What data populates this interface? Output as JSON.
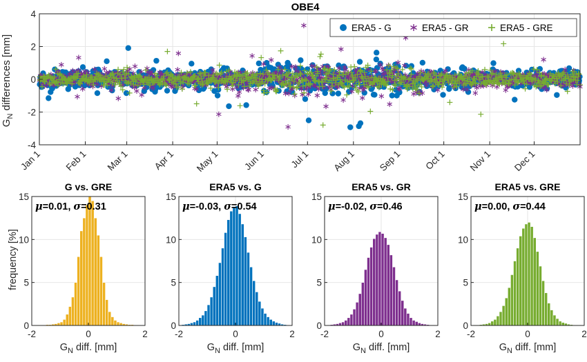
{
  "chart_data": [
    {
      "type": "scatter",
      "title": "OBE4",
      "ylabel_main": "G",
      "ylabel_sub": "N",
      "ylabel_rest": " differences [mm]",
      "ylim": [
        -4,
        4
      ],
      "yticks": [
        -4,
        -2,
        0,
        2,
        4
      ],
      "x_ticks": [
        "Jan 1",
        "Feb 1",
        "Mar 1",
        "Apr 1",
        "May 1",
        "Jun 1",
        "Jul 1",
        "Aug 1",
        "Sep 1",
        "Oct 1",
        "Nov 1",
        "Dec 1"
      ],
      "x_tick_days": [
        1,
        32,
        60,
        91,
        121,
        152,
        182,
        213,
        244,
        274,
        305,
        335
      ],
      "xlim_days": [
        1,
        366
      ],
      "grid": true,
      "legend_position": "top-right",
      "series": [
        {
          "name": "ERA5 - G",
          "marker": "filled-circle",
          "color": "#0072bd",
          "spread": 0.54
        },
        {
          "name": "ERA5 - GR",
          "marker": "asterisk",
          "color": "#7e2f8e",
          "spread": 0.46
        },
        {
          "name": "ERA5 - GRE",
          "marker": "plus",
          "color": "#77ac30",
          "spread": 0.44
        }
      ]
    },
    {
      "type": "bar",
      "title": "G vs. GRE",
      "mu": "0.01",
      "sigma": "0.31",
      "color": "#edb120",
      "xlim": [
        -2,
        2
      ],
      "xticks": [
        "-2",
        "0",
        "2"
      ],
      "ylim": [
        0,
        15
      ],
      "yticks": [
        "0",
        "5",
        "10",
        "15"
      ],
      "ylabel": "frequency [%]",
      "xlabel_main": "G",
      "xlabel_sub": "N",
      "xlabel_rest": " diff. [mm]",
      "bin_width": 0.1,
      "bin_centers": [
        -1.75,
        -1.65,
        -1.55,
        -1.45,
        -1.35,
        -1.25,
        -1.15,
        -1.05,
        -0.95,
        -0.85,
        -0.75,
        -0.65,
        -0.55,
        -0.45,
        -0.35,
        -0.25,
        -0.15,
        -0.05,
        0.05,
        0.15,
        0.25,
        0.35,
        0.45,
        0.55,
        0.65,
        0.75,
        0.85,
        0.95,
        1.05,
        1.15,
        1.25,
        1.35,
        1.45,
        1.55,
        1.65,
        1.75
      ],
      "values": [
        0.05,
        0.05,
        0.05,
        0.1,
        0.1,
        0.15,
        0.2,
        0.3,
        0.4,
        0.7,
        1.3,
        2.2,
        3.3,
        5.0,
        8.0,
        11.0,
        12.5,
        14.0,
        15.0,
        14.5,
        12.5,
        10.5,
        8.0,
        5.0,
        3.0,
        1.6,
        1.0,
        0.6,
        0.4,
        0.3,
        0.2,
        0.15,
        0.1,
        0.1,
        0.05,
        0.05
      ]
    },
    {
      "type": "bar",
      "title": "ERA5 vs. G",
      "mu": "-0.03",
      "sigma": "0.54",
      "color": "#0072bd",
      "xlim": [
        -2,
        2
      ],
      "xticks": [
        "-2",
        "0",
        "2"
      ],
      "ylim": [
        0,
        15
      ],
      "yticks": [
        "0",
        "5",
        "10",
        "15"
      ],
      "xlabel_main": "G",
      "xlabel_sub": "N",
      "xlabel_rest": " diff. [mm]",
      "bin_width": 0.1,
      "bin_centers": [
        -1.85,
        -1.75,
        -1.65,
        -1.55,
        -1.45,
        -1.35,
        -1.25,
        -1.15,
        -1.05,
        -0.95,
        -0.85,
        -0.75,
        -0.65,
        -0.55,
        -0.45,
        -0.35,
        -0.25,
        -0.15,
        -0.05,
        0.05,
        0.15,
        0.25,
        0.35,
        0.45,
        0.55,
        0.65,
        0.75,
        0.85,
        0.95,
        1.05,
        1.15,
        1.25,
        1.35,
        1.45,
        1.55,
        1.65,
        1.75,
        1.85
      ],
      "values": [
        0.1,
        0.15,
        0.2,
        0.3,
        0.4,
        0.6,
        0.9,
        1.2,
        1.7,
        2.4,
        3.3,
        4.5,
        5.8,
        7.3,
        9.0,
        10.8,
        12.3,
        13.3,
        13.7,
        13.9,
        13.0,
        11.8,
        10.3,
        8.5,
        6.8,
        5.2,
        3.9,
        2.8,
        2.0,
        1.4,
        1.0,
        0.7,
        0.5,
        0.35,
        0.25,
        0.15,
        0.1,
        0.05
      ]
    },
    {
      "type": "bar",
      "title": "ERA5 vs. GR",
      "mu": "-0.02",
      "sigma": "0.46",
      "color": "#7e2f8e",
      "xlim": [
        -2,
        2
      ],
      "xticks": [
        "-2",
        "0",
        "2"
      ],
      "ylim": [
        0,
        15
      ],
      "yticks": [
        "0",
        "5",
        "10",
        "15"
      ],
      "xlabel_main": "G",
      "xlabel_sub": "N",
      "xlabel_rest": " diff. [mm]",
      "bin_width": 0.1,
      "bin_centers": [
        -1.85,
        -1.75,
        -1.65,
        -1.55,
        -1.45,
        -1.35,
        -1.25,
        -1.15,
        -1.05,
        -0.95,
        -0.85,
        -0.75,
        -0.65,
        -0.55,
        -0.45,
        -0.35,
        -0.25,
        -0.15,
        -0.05,
        0.05,
        0.15,
        0.25,
        0.35,
        0.45,
        0.55,
        0.65,
        0.75,
        0.85,
        0.95,
        1.05,
        1.15,
        1.25,
        1.35,
        1.45,
        1.55,
        1.65,
        1.75,
        1.85
      ],
      "values": [
        0.05,
        0.1,
        0.15,
        0.2,
        0.3,
        0.4,
        0.6,
        0.9,
        1.3,
        1.9,
        2.7,
        3.7,
        5.0,
        6.5,
        7.9,
        9.1,
        10.1,
        10.6,
        10.9,
        10.7,
        10.2,
        9.4,
        8.2,
        6.8,
        5.3,
        4.0,
        2.9,
        2.0,
        1.4,
        0.9,
        0.6,
        0.45,
        0.3,
        0.2,
        0.15,
        0.1,
        0.05,
        0.05
      ]
    },
    {
      "type": "bar",
      "title": "ERA5 vs. GRE",
      "mu": "0.00",
      "sigma": "0.44",
      "color": "#77ac30",
      "xlim": [
        -2,
        2
      ],
      "xticks": [
        "-2",
        "0",
        "2"
      ],
      "ylim": [
        0,
        15
      ],
      "yticks": [
        "0",
        "5",
        "10",
        "15"
      ],
      "xlabel_main": "G",
      "xlabel_sub": "N",
      "xlabel_rest": " diff. [mm]",
      "bin_width": 0.1,
      "bin_centers": [
        -1.85,
        -1.75,
        -1.65,
        -1.55,
        -1.45,
        -1.35,
        -1.25,
        -1.15,
        -1.05,
        -0.95,
        -0.85,
        -0.75,
        -0.65,
        -0.55,
        -0.45,
        -0.35,
        -0.25,
        -0.15,
        -0.05,
        0.05,
        0.15,
        0.25,
        0.35,
        0.45,
        0.55,
        0.65,
        0.75,
        0.85,
        0.95,
        1.05,
        1.15,
        1.25,
        1.35,
        1.45,
        1.55,
        1.65,
        1.75,
        1.85
      ],
      "values": [
        0.05,
        0.05,
        0.1,
        0.15,
        0.2,
        0.3,
        0.5,
        0.7,
        1.1,
        1.6,
        2.3,
        3.2,
        4.4,
        5.9,
        7.5,
        9.0,
        10.4,
        11.3,
        11.8,
        12.0,
        11.5,
        10.2,
        8.6,
        6.9,
        5.2,
        3.8,
        2.6,
        1.8,
        1.2,
        0.8,
        0.5,
        0.35,
        0.25,
        0.15,
        0.1,
        0.05,
        0.05,
        0.05
      ]
    }
  ]
}
